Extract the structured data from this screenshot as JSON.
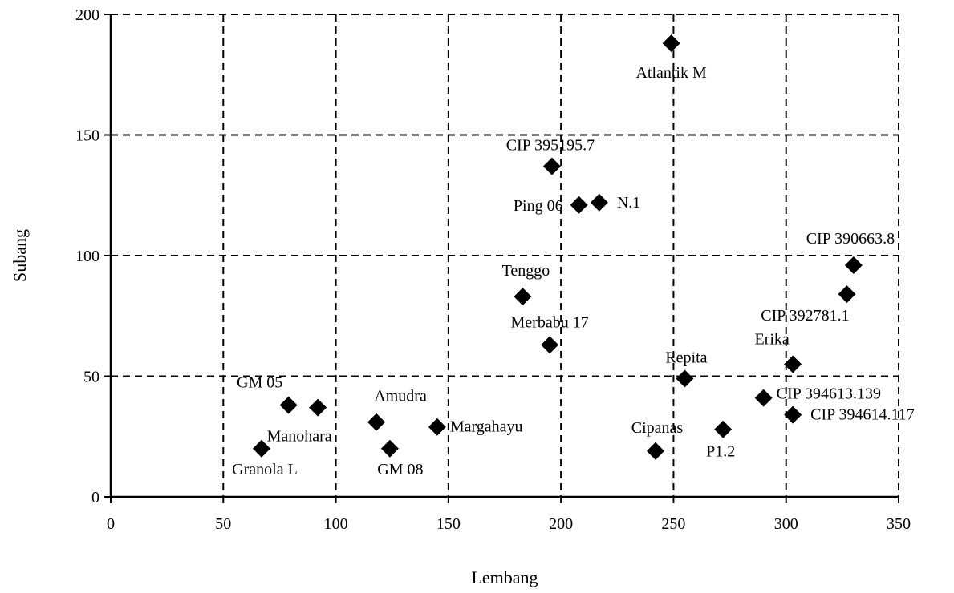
{
  "chart_data": {
    "type": "scatter",
    "title": "",
    "xlabel": "Lembang",
    "ylabel": "Subang",
    "xlim": [
      0,
      350
    ],
    "ylim": [
      0,
      200
    ],
    "xticks": [
      0,
      50,
      100,
      150,
      200,
      250,
      300,
      350
    ],
    "yticks": [
      0,
      50,
      100,
      150,
      200
    ],
    "x_tick_labels": [
      "0",
      "50",
      "100",
      "150",
      "200",
      "250",
      "300",
      "350"
    ],
    "y_tick_labels": [
      "0",
      "50",
      "100",
      "150",
      "200"
    ],
    "grid": true,
    "legend": "none",
    "marker": "diamond",
    "colors": {
      "marker": "#000000",
      "grid": "#000000"
    },
    "points": [
      {
        "label": "Atlantik M",
        "x": 249,
        "y": 188
      },
      {
        "label": "CIP 395195.7",
        "x": 196,
        "y": 137
      },
      {
        "label": "Ping 06",
        "x": 208,
        "y": 121
      },
      {
        "label": "N.1",
        "x": 217,
        "y": 122
      },
      {
        "label": "CIP 390663.8",
        "x": 330,
        "y": 96
      },
      {
        "label": "CIP 392781.1",
        "x": 327,
        "y": 84
      },
      {
        "label": "Tenggo",
        "x": 183,
        "y": 83
      },
      {
        "label": "Merbabu 17",
        "x": 195,
        "y": 63
      },
      {
        "label": "Erika",
        "x": 303,
        "y": 55
      },
      {
        "label": "Repita",
        "x": 255,
        "y": 49
      },
      {
        "label": "CIP 394613.139",
        "x": 290,
        "y": 41
      },
      {
        "label": "CIP 394614.117",
        "x": 303,
        "y": 34
      },
      {
        "label": "P1.2",
        "x": 272,
        "y": 28
      },
      {
        "label": "Cipanas",
        "x": 242,
        "y": 19
      },
      {
        "label": "GM 05",
        "x": 79,
        "y": 38
      },
      {
        "label": "Manohara",
        "x": 92,
        "y": 37
      },
      {
        "label": "Amudra",
        "x": 118,
        "y": 31
      },
      {
        "label": "Margahayu",
        "x": 145,
        "y": 29
      },
      {
        "label": "GM 08",
        "x": 124,
        "y": 20
      },
      {
        "label": "Granola L",
        "x": 67,
        "y": 20
      }
    ]
  }
}
